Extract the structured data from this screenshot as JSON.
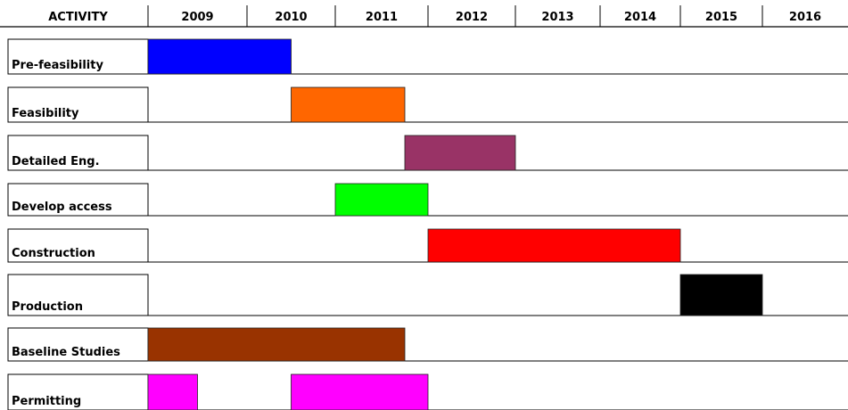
{
  "chart_data": {
    "type": "gantt",
    "header_label": "ACTIVITY",
    "years": [
      "2009",
      "2010",
      "2011",
      "2012",
      "2013",
      "2014",
      "2015",
      "2016"
    ],
    "activities": [
      {
        "name": "Pre-feasibility",
        "color": "#0000ff",
        "bars": [
          [
            2009.0,
            2010.5
          ]
        ]
      },
      {
        "name": "Feasibility",
        "color": "#ff6600",
        "bars": [
          [
            2010.5,
            2011.75
          ]
        ]
      },
      {
        "name": "Detailed Eng.",
        "color": "#993366",
        "bars": [
          [
            2011.75,
            2013.0
          ]
        ]
      },
      {
        "name": "Develop access",
        "color": "#00ff00",
        "bars": [
          [
            2011.0,
            2012.0
          ]
        ]
      },
      {
        "name": "Construction",
        "color": "#ff0000",
        "bars": [
          [
            2012.0,
            2015.0
          ]
        ]
      },
      {
        "name": "Production",
        "color": "#000000",
        "bars": [
          [
            2015.0,
            2016.0
          ]
        ]
      },
      {
        "name": "Baseline Studies",
        "color": "#993300",
        "bars": [
          [
            2009.0,
            2011.75
          ]
        ]
      },
      {
        "name": "Permitting",
        "color": "#ff00ff",
        "bars": [
          [
            2009.0,
            2009.5
          ],
          [
            2010.5,
            2012.0
          ]
        ]
      }
    ]
  }
}
